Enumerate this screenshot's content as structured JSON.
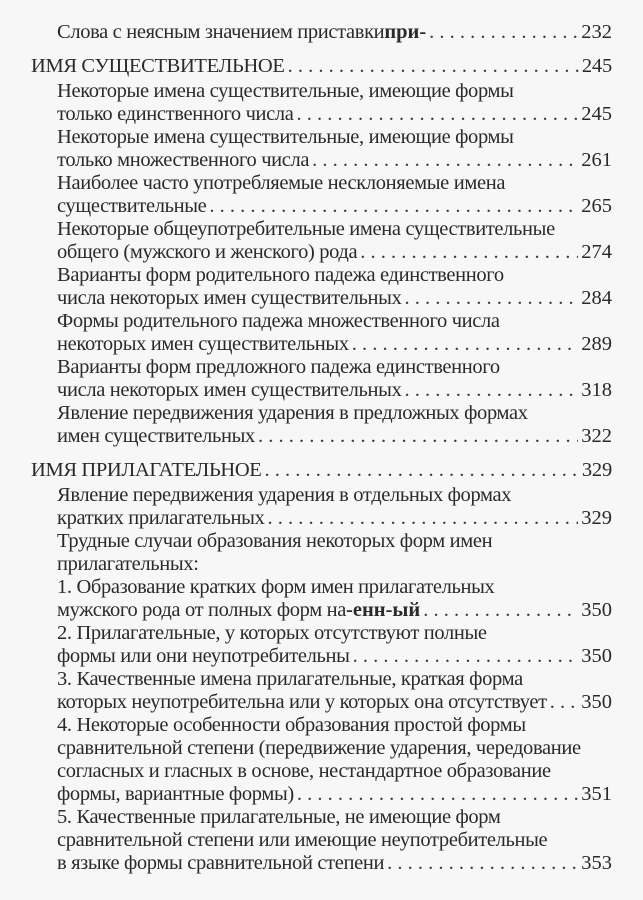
{
  "entries": [
    {
      "type": "entry",
      "lines": [
        "Слова с неясным значением приставки "
      ],
      "bold": "при-",
      "page": "232"
    },
    {
      "type": "heading",
      "lines": [
        "ИМЯ СУЩЕСТВИТЕЛЬНОЕ"
      ],
      "page": "245"
    },
    {
      "type": "entry",
      "lines": [
        "Некоторые имена существительные, имеющие формы",
        "только единственного числа"
      ],
      "page": "245"
    },
    {
      "type": "entry",
      "lines": [
        "Некоторые имена существительные, имеющие формы",
        "только множественного числа"
      ],
      "page": "261"
    },
    {
      "type": "entry",
      "lines": [
        "Наиболее часто употребляемые несклоняемые имена",
        "существительные"
      ],
      "page": "265"
    },
    {
      "type": "entry",
      "lines": [
        "Некоторые общеупотребительные имена существительные",
        "общего (мужского и женского) рода"
      ],
      "page": "274"
    },
    {
      "type": "entry",
      "lines": [
        "Варианты форм родительного падежа единственного",
        "числа некоторых имен существительных"
      ],
      "page": "284"
    },
    {
      "type": "entry",
      "lines": [
        "Формы родительного падежа множественного числа",
        "некоторых имен существительных"
      ],
      "page": "289"
    },
    {
      "type": "entry",
      "lines": [
        "Варианты форм предложного падежа единственного",
        "числа некоторых имен существительных"
      ],
      "page": "318"
    },
    {
      "type": "entry",
      "lines": [
        "Явление передвижения ударения в предложных формах",
        "имен существительных"
      ],
      "page": "322"
    },
    {
      "type": "heading",
      "lines": [
        "ИМЯ ПРИЛАГАТЕЛЬНОЕ"
      ],
      "page": "329"
    },
    {
      "type": "entry",
      "lines": [
        "Явление передвижения ударения в отдельных формах",
        "кратких прилагательных"
      ],
      "page": "329"
    },
    {
      "type": "entry",
      "lines": [
        "Трудные случаи образования некоторых форм имен",
        "прилагательных:"
      ],
      "page": ""
    },
    {
      "type": "entry",
      "lines": [
        "1. Образование кратких форм имен прилагательных",
        "мужского рода от полных форм на "
      ],
      "bold": "-енн-ый",
      "page": "350"
    },
    {
      "type": "entry",
      "lines": [
        "2. Прилагательные, у которых отсутствуют полные",
        "формы или они неупотребительны"
      ],
      "page": "350"
    },
    {
      "type": "entry",
      "lines": [
        "3. Качественные имена прилагательные, краткая форма",
        "которых неупотребительна или у которых она отсутствует"
      ],
      "page": "350"
    },
    {
      "type": "entry",
      "lines": [
        "4. Некоторые особенности образования простой формы",
        "сравнительной степени (передвижение ударения, чередование",
        "согласных и гласных в основе, нестандартное образование",
        "формы, вариантные формы)"
      ],
      "page": "351"
    },
    {
      "type": "entry",
      "lines": [
        "5. Качественные прилагательные, не имеющие форм",
        "сравнительной степени или имеющие неупотребительные",
        "в языке формы сравнительной степени"
      ],
      "page": "353"
    }
  ]
}
